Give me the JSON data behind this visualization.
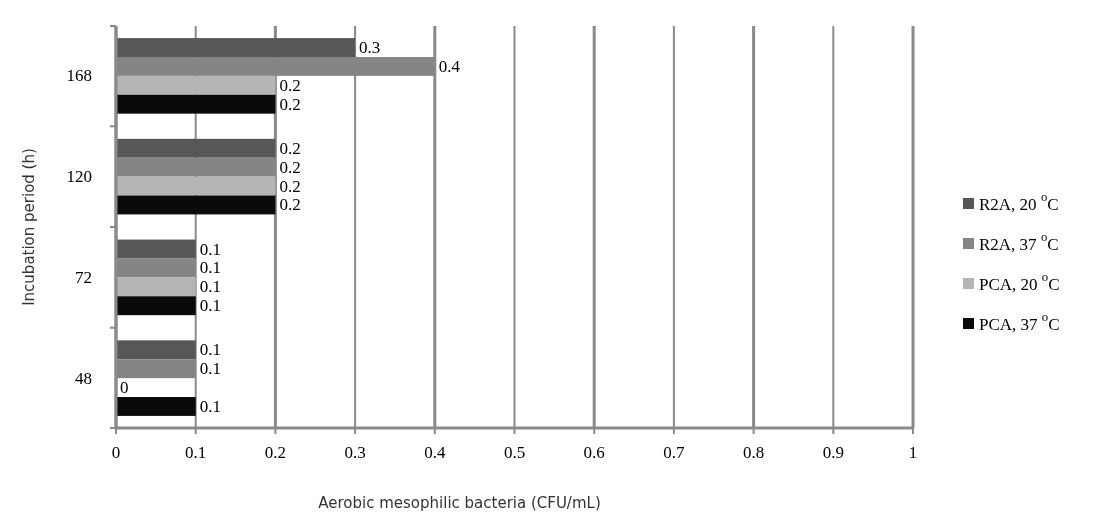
{
  "chart_data": {
    "type": "bar",
    "orientation": "horizontal",
    "xlabel": "Aerobic mesophilic bacteria (CFU/mL)",
    "ylabel": "Incubation period (h)",
    "categories": [
      "168",
      "120",
      "72",
      "48"
    ],
    "series": [
      {
        "name": "R2A, 20 $^{o}$C",
        "color": "#575757",
        "values": [
          0.3,
          0.2,
          0.1,
          0.1
        ]
      },
      {
        "name": "R2A, 37 $^{o}$C",
        "color": "#858585",
        "values": [
          0.4,
          0.2,
          0.1,
          0.1
        ]
      },
      {
        "name": "PCA, 20 $^{o}$C",
        "color": "#b5b5b5",
        "values": [
          0.2,
          0.2,
          0.1,
          0
        ]
      },
      {
        "name": "PCA, 37 $^{o}$C",
        "color": "#0a0a0a",
        "values": [
          0.2,
          0.2,
          0.1,
          0.1
        ]
      }
    ],
    "xlim": [
      0,
      1
    ],
    "xticks": [
      0,
      0.1,
      0.2,
      0.3,
      0.4,
      0.5,
      0.6,
      0.7,
      0.8,
      0.9,
      1
    ],
    "grid": "x",
    "legend": "right",
    "data_labels": true
  }
}
